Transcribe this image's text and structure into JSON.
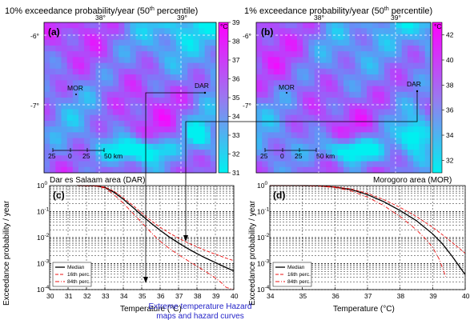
{
  "caption": [
    "Extreme temperature Hazard",
    "maps and hazard curves"
  ],
  "colors": {
    "low": "#00f0f0",
    "high": "#ff00ff",
    "median": "#000000",
    "percentiles": "#ee1111",
    "caption": "#2424c8"
  },
  "maps": [
    {
      "panel": "(a)",
      "title": "10% exceedance probability/year (50",
      "title_sup": "th",
      "title_tail": " percentile)",
      "lon_ticks": [
        "38°",
        "39°"
      ],
      "lat_ticks": [
        "-6°",
        "-7°"
      ],
      "colorbar_unit": "°C",
      "colorbar_ticks": [
        "31",
        "32",
        "33",
        "34",
        "35",
        "36",
        "37",
        "38",
        "39"
      ],
      "value_range": [
        31,
        39
      ],
      "towns": [
        "MOR",
        "DAR"
      ],
      "scalebar_ticks": [
        "25",
        "0",
        "25",
        "50 km"
      ]
    },
    {
      "panel": "(b)",
      "title": "1% exceedance probability/year (50",
      "title_sup": "th",
      "title_tail": " percentile)",
      "lon_ticks": [
        "38°",
        "39°"
      ],
      "lat_ticks": [
        "-6°",
        "-7°"
      ],
      "colorbar_unit": "°C",
      "colorbar_ticks": [
        "32",
        "34",
        "36",
        "38",
        "40",
        "42"
      ],
      "value_range": [
        31,
        43
      ],
      "towns": [
        "MOR",
        "DAR"
      ],
      "scalebar_ticks": [
        "25",
        "0",
        "25",
        "50 km"
      ]
    }
  ],
  "chart_data": [
    {
      "type": "line",
      "panel": "(c)",
      "title": "Dar es Salaam area (DAR)",
      "xlabel": "Temperature (°C)",
      "ylabel": "Exceedance probability / year",
      "xlim": [
        30,
        40
      ],
      "ylim": [
        0.0001,
        1
      ],
      "yscale": "log",
      "grid": true,
      "legend_position": "bottom-left",
      "x_ticks": [
        "30",
        "31",
        "32",
        "33",
        "34",
        "35",
        "36",
        "37",
        "38",
        "39",
        "40"
      ],
      "y_ticks": [
        "-4",
        "-3",
        "-2",
        "-1",
        "0"
      ],
      "series": [
        {
          "name": "Median",
          "style": "solid",
          "x": [
            31.5,
            32.5,
            33.0,
            33.5,
            34.0,
            34.5,
            35.0,
            35.5,
            36.0,
            36.5,
            37.0,
            37.5,
            38.0,
            38.5,
            39.0,
            39.5,
            40.0
          ],
          "y": [
            1.0,
            0.97,
            0.85,
            0.55,
            0.3,
            0.15,
            0.072,
            0.036,
            0.019,
            0.0105,
            0.0062,
            0.0038,
            0.0024,
            0.0016,
            0.0011,
            0.00075,
            0.00052
          ]
        },
        {
          "name": "16th perc.",
          "style": "dash",
          "x": [
            31.5,
            32.5,
            33.0,
            33.5,
            34.0,
            34.5,
            35.0,
            35.5,
            36.0,
            36.5,
            37.0,
            37.5,
            38.0,
            38.5,
            39.0,
            39.5,
            40.0
          ],
          "y": [
            1.0,
            0.98,
            0.88,
            0.6,
            0.34,
            0.18,
            0.088,
            0.045,
            0.025,
            0.015,
            0.0095,
            0.0063,
            0.0044,
            0.0031,
            0.0023,
            0.0017,
            0.0013
          ]
        },
        {
          "name": "84th perc.",
          "style": "dashdot",
          "x": [
            31.5,
            32.5,
            33.0,
            33.5,
            34.0,
            34.5,
            35.0,
            35.5,
            36.0,
            36.5,
            37.0,
            37.5,
            38.0,
            38.5,
            39.0,
            39.3,
            39.6,
            40.0
          ],
          "y": [
            1.0,
            0.96,
            0.8,
            0.45,
            0.21,
            0.09,
            0.038,
            0.016,
            0.0072,
            0.0038,
            0.0022,
            0.0013,
            0.0008,
            0.00048,
            0.00028,
            0.00019,
            0.00012,
            0.0001
          ]
        }
      ]
    },
    {
      "type": "line",
      "panel": "(d)",
      "title": "Morogoro area (MOR)",
      "xlabel": "Temperature (°C)",
      "ylabel": "Exceedance probability / year",
      "xlim": [
        34,
        40
      ],
      "ylim": [
        0.0001,
        1
      ],
      "yscale": "log",
      "grid": true,
      "legend_position": "bottom-left",
      "x_ticks": [
        "34",
        "35",
        "36",
        "37",
        "38",
        "39",
        "40"
      ],
      "y_ticks": [
        "-4",
        "-3",
        "-2",
        "-1",
        "0"
      ],
      "series": [
        {
          "name": "Median",
          "style": "solid",
          "x": [
            34.0,
            35.0,
            35.5,
            36.0,
            36.5,
            37.0,
            37.5,
            38.0,
            38.5,
            39.0,
            39.3,
            39.6,
            40.0
          ],
          "y": [
            1.0,
            1.0,
            0.97,
            0.88,
            0.7,
            0.45,
            0.24,
            0.11,
            0.045,
            0.014,
            0.0058,
            0.0019,
            0.00038
          ]
        },
        {
          "name": "16th perc.",
          "style": "dash",
          "x": [
            34.0,
            35.0,
            35.5,
            36.0,
            36.5,
            37.0,
            37.5,
            38.0,
            38.5,
            39.0,
            39.3,
            39.6,
            40.0
          ],
          "y": [
            1.0,
            1.0,
            0.98,
            0.9,
            0.74,
            0.5,
            0.29,
            0.145,
            0.065,
            0.025,
            0.013,
            0.0065,
            0.0025
          ]
        },
        {
          "name": "84th perc.",
          "style": "dashdot",
          "x": [
            34.0,
            35.0,
            35.5,
            36.0,
            36.5,
            37.0,
            37.5,
            38.0,
            38.5,
            38.8,
            39.0,
            39.2,
            39.4
          ],
          "y": [
            1.0,
            1.0,
            0.96,
            0.84,
            0.62,
            0.36,
            0.17,
            0.065,
            0.02,
            0.0085,
            0.0042,
            0.0015,
            0.00032
          ]
        }
      ]
    }
  ]
}
